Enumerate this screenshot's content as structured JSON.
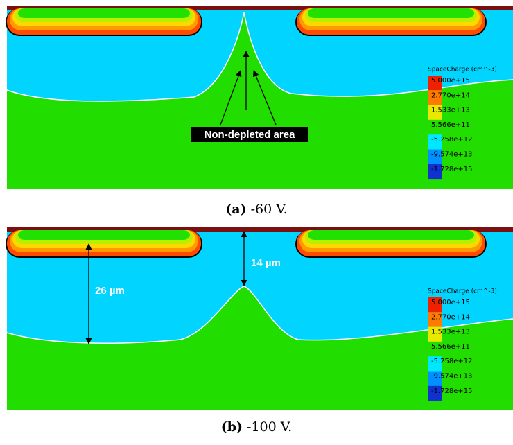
{
  "panels": [
    {
      "caption_label": "(a)",
      "caption_text": "-60 V.",
      "colorbar": {
        "title": "SpaceCharge (cm^-3)",
        "labels": [
          "5.000e+15",
          "2.770e+14",
          "1.533e+13",
          "5.566e+11",
          "-5.258e+12",
          "-9.574e+13",
          "-1.728e+15"
        ]
      },
      "annotations": [
        "Non-depleted area"
      ]
    },
    {
      "caption_label": "(b)",
      "caption_text": "-100 V.",
      "colorbar": {
        "title": "SpaceCharge (cm^-3)",
        "labels": [
          "5.000e+15",
          "2.770e+14",
          "1.533e+13",
          "5.566e+11",
          "-5.258e+12",
          "-9.574e+13",
          "-1.728e+15"
        ]
      },
      "annotations": [
        "26 µm",
        "14 µm"
      ]
    }
  ]
}
